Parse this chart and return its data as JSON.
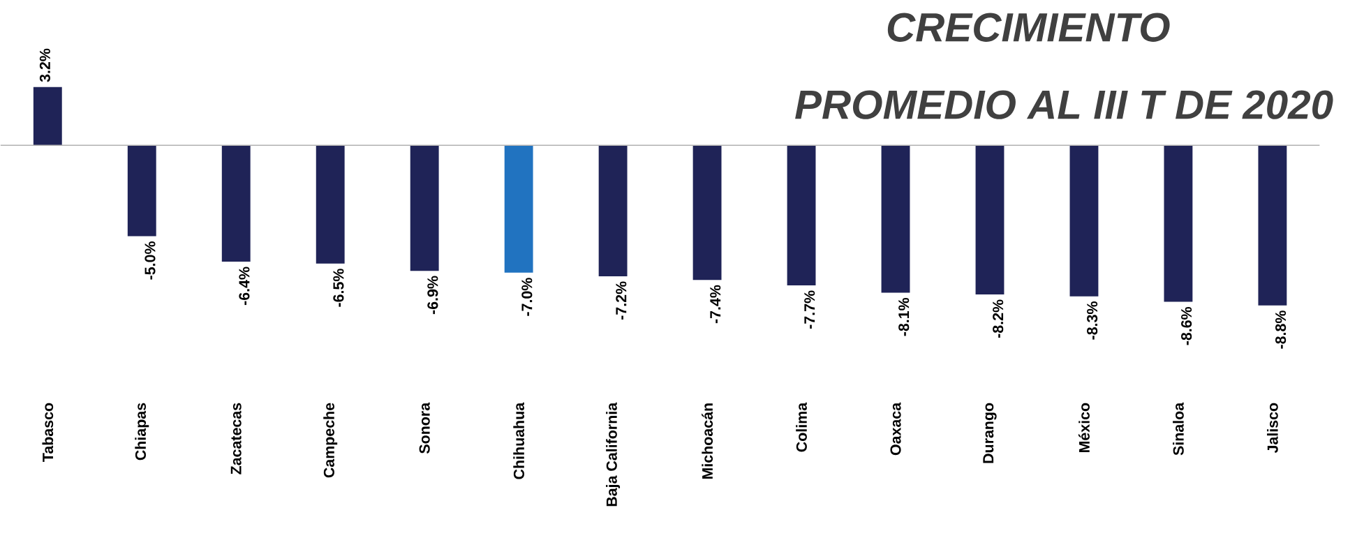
{
  "chart_data": {
    "type": "bar",
    "title": "CRECIMIENTO",
    "subtitle": "PROMEDIO AL III T DE 2020",
    "categories": [
      "Tabasco",
      "Chiapas",
      "Zacatecas",
      "Campeche",
      "Sonora",
      "Chihuahua",
      "Baja California",
      "Michoacán",
      "Colima",
      "Oaxaca",
      "Durango",
      "México",
      "Sinaloa",
      "Jalisco"
    ],
    "values": [
      3.2,
      -5.0,
      -6.4,
      -6.5,
      -6.9,
      -7.0,
      -7.2,
      -7.4,
      -7.7,
      -8.1,
      -8.2,
      -8.3,
      -8.6,
      -8.8
    ],
    "value_labels": [
      "3.2%",
      "-5.0%",
      "-6.4%",
      "-6.5%",
      "-6.9%",
      "-7.0%",
      "-7.2%",
      "-7.4%",
      "-7.7%",
      "-8.1%",
      "-8.2%",
      "-8.3%",
      "-8.6%",
      "-8.8%"
    ],
    "colors": [
      "#1f2357",
      "#1f2357",
      "#1f2357",
      "#1f2357",
      "#1f2357",
      "#2173c0",
      "#1f2357",
      "#1f2357",
      "#1f2357",
      "#1f2357",
      "#1f2357",
      "#1f2357",
      "#1f2357",
      "#1f2357"
    ]
  }
}
